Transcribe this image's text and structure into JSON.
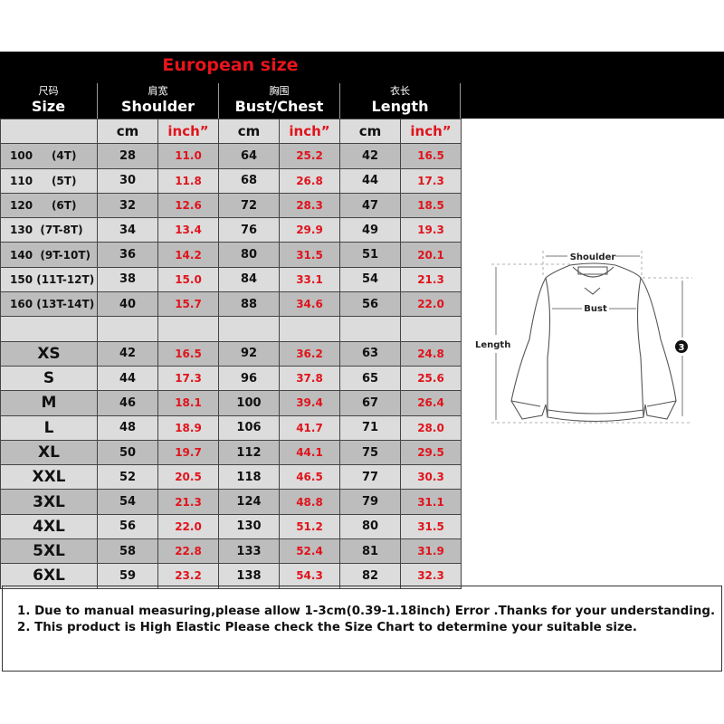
{
  "title": "European size",
  "headers": [
    {
      "cn": "尺码",
      "en": "Size"
    },
    {
      "cn": "肩宽",
      "en": "Shoulder"
    },
    {
      "cn": "胸围",
      "en": "Bust/Chest"
    },
    {
      "cn": "衣长",
      "en": "Length"
    }
  ],
  "units": {
    "cm": "cm",
    "inch": "inch”"
  },
  "kids_rows": [
    [
      "100     (4T)",
      "28",
      "11.0",
      "64",
      "25.2",
      "42",
      "16.5"
    ],
    [
      "110     (5T)",
      "30",
      "11.8",
      "68",
      "26.8",
      "44",
      "17.3"
    ],
    [
      "120     (6T)",
      "32",
      "12.6",
      "72",
      "28.3",
      "47",
      "18.5"
    ],
    [
      "130  (7T-8T)",
      "34",
      "13.4",
      "76",
      "29.9",
      "49",
      "19.3"
    ],
    [
      "140  (9T-10T)",
      "36",
      "14.2",
      "80",
      "31.5",
      "51",
      "20.1"
    ],
    [
      "150 (11T-12T)",
      "38",
      "15.0",
      "84",
      "33.1",
      "54",
      "21.3"
    ],
    [
      "160 (13T-14T)",
      "40",
      "15.7",
      "88",
      "34.6",
      "56",
      "22.0"
    ]
  ],
  "adult_rows": [
    [
      "XS",
      "42",
      "16.5",
      "92",
      "36.2",
      "63",
      "24.8"
    ],
    [
      "S",
      "44",
      "17.3",
      "96",
      "37.8",
      "65",
      "25.6"
    ],
    [
      "M",
      "46",
      "18.1",
      "100",
      "39.4",
      "67",
      "26.4"
    ],
    [
      "L",
      "48",
      "18.9",
      "106",
      "41.7",
      "71",
      "28.0"
    ],
    [
      "XL",
      "50",
      "19.7",
      "112",
      "44.1",
      "75",
      "29.5"
    ],
    [
      "XXL",
      "52",
      "20.5",
      "118",
      "46.5",
      "77",
      "30.3"
    ],
    [
      "3XL",
      "54",
      "21.3",
      "124",
      "48.8",
      "79",
      "31.1"
    ],
    [
      "4XL",
      "56",
      "22.0",
      "130",
      "51.2",
      "80",
      "31.5"
    ],
    [
      "5XL",
      "58",
      "22.8",
      "133",
      "52.4",
      "81",
      "31.9"
    ],
    [
      "6XL",
      "59",
      "23.2",
      "138",
      "54.3",
      "82",
      "32.3"
    ]
  ],
  "diagram": {
    "shoulder": "Shoulder",
    "bust": "Bust",
    "length": "Length",
    "sleeve_marker": "3"
  },
  "notes": [
    "1. Due to manual measuring,please allow 1-3cm(0.39-1.18inch) Error .Thanks for your understanding.",
    "2. This product is High Elastic Please check the Size Chart to determine your suitable size."
  ],
  "colors": {
    "accent": "#e0141c",
    "header_bg": "#000000",
    "row_dark": "#bdbdbd",
    "row_light": "#dcdcdc"
  }
}
